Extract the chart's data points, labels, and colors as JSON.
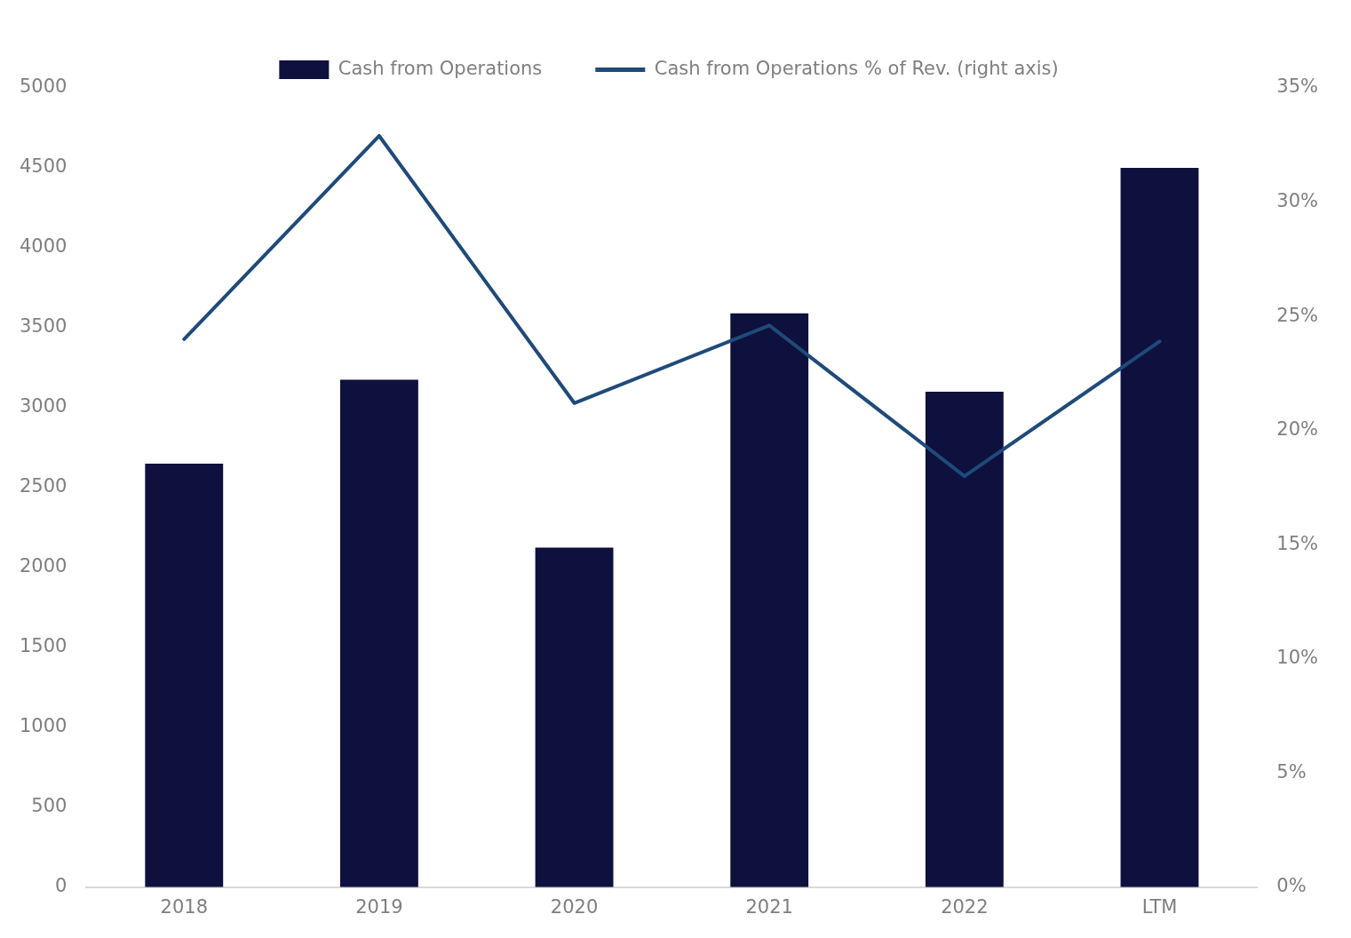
{
  "chart_data": {
    "type": "bar",
    "categories": [
      "2018",
      "2019",
      "2020",
      "2021",
      "2022",
      "LTM"
    ],
    "series": [
      {
        "name": "Cash from Operations",
        "color": "#0e103d",
        "values": [
          2650,
          3175,
          2125,
          3590,
          3100,
          4500
        ]
      },
      {
        "name": "Cash from Operations % of Rev. (right axis)",
        "type": "line",
        "axis": "y2",
        "color": "#1f4a7a",
        "values": [
          24.0,
          32.9,
          21.2,
          24.6,
          18.0,
          23.9
        ]
      }
    ],
    "ylim": [
      0,
      5000
    ],
    "yticks": [
      0,
      500,
      1000,
      1500,
      2000,
      2500,
      3000,
      3500,
      4000,
      4500,
      5000
    ],
    "y2lim": [
      0,
      35
    ],
    "y2ticks": [
      {
        "value": 0,
        "label": "0%"
      },
      {
        "value": 5,
        "label": "5%"
      },
      {
        "value": 10,
        "label": "10%"
      },
      {
        "value": 15,
        "label": "15%"
      },
      {
        "value": 20,
        "label": "20%"
      },
      {
        "value": 25,
        "label": "25%"
      },
      {
        "value": 30,
        "label": "30%"
      },
      {
        "value": 35,
        "label": "35%"
      }
    ],
    "grid": false,
    "legend": "top",
    "marker": "none",
    "line_style": "solid"
  }
}
